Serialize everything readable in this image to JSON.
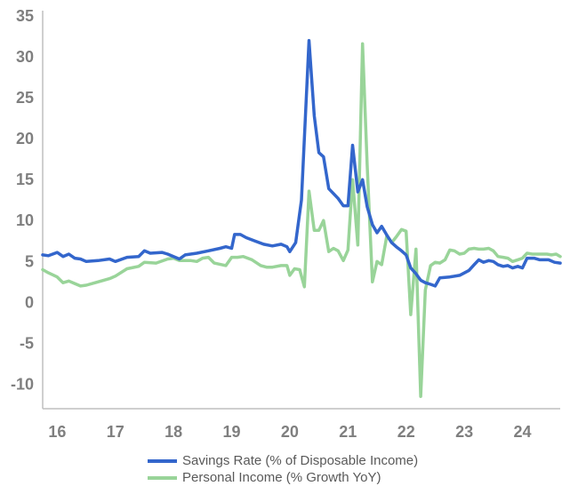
{
  "chart_data": {
    "type": "line",
    "x_ticks": [
      "16",
      "17",
      "18",
      "19",
      "20",
      "21",
      "22",
      "23",
      "24"
    ],
    "x_range": [
      2015.75,
      2024.65
    ],
    "ylim": [
      -13,
      35
    ],
    "y_ticks": [
      35,
      30,
      25,
      20,
      15,
      10,
      5,
      0,
      -5,
      -10
    ],
    "grid": false,
    "legend_position": "bottom",
    "series": [
      {
        "name": "Savings Rate (% of Disposable Income)",
        "color": "#3366cc",
        "points": [
          [
            2015.75,
            5.8
          ],
          [
            2015.85,
            5.7
          ],
          [
            2016.0,
            6.1
          ],
          [
            2016.1,
            5.6
          ],
          [
            2016.2,
            5.9
          ],
          [
            2016.3,
            5.4
          ],
          [
            2016.4,
            5.3
          ],
          [
            2016.5,
            5.0
          ],
          [
            2016.7,
            5.1
          ],
          [
            2016.9,
            5.3
          ],
          [
            2017.0,
            5.0
          ],
          [
            2017.2,
            5.5
          ],
          [
            2017.4,
            5.6
          ],
          [
            2017.5,
            6.3
          ],
          [
            2017.6,
            6.0
          ],
          [
            2017.8,
            6.1
          ],
          [
            2017.9,
            5.9
          ],
          [
            2018.0,
            5.6
          ],
          [
            2018.1,
            5.3
          ],
          [
            2018.2,
            5.8
          ],
          [
            2018.4,
            6.0
          ],
          [
            2018.6,
            6.3
          ],
          [
            2018.8,
            6.6
          ],
          [
            2018.9,
            6.8
          ],
          [
            2019.0,
            6.6
          ],
          [
            2019.05,
            8.3
          ],
          [
            2019.15,
            8.3
          ],
          [
            2019.25,
            7.9
          ],
          [
            2019.4,
            7.5
          ],
          [
            2019.55,
            7.1
          ],
          [
            2019.7,
            6.9
          ],
          [
            2019.85,
            7.1
          ],
          [
            2019.95,
            6.8
          ],
          [
            2020.0,
            6.2
          ],
          [
            2020.1,
            7.3
          ],
          [
            2020.2,
            12.5
          ],
          [
            2020.33,
            32.0
          ],
          [
            2020.42,
            22.8
          ],
          [
            2020.5,
            18.3
          ],
          [
            2020.58,
            17.8
          ],
          [
            2020.67,
            13.9
          ],
          [
            2020.83,
            12.7
          ],
          [
            2020.92,
            11.8
          ],
          [
            2021.0,
            11.8
          ],
          [
            2021.08,
            19.2
          ],
          [
            2021.17,
            13.5
          ],
          [
            2021.25,
            15.0
          ],
          [
            2021.33,
            11.7
          ],
          [
            2021.42,
            9.5
          ],
          [
            2021.5,
            8.5
          ],
          [
            2021.58,
            9.3
          ],
          [
            2021.67,
            8.2
          ],
          [
            2021.75,
            7.3
          ],
          [
            2021.83,
            6.8
          ],
          [
            2021.92,
            6.3
          ],
          [
            2022.0,
            5.8
          ],
          [
            2022.08,
            4.2
          ],
          [
            2022.17,
            3.5
          ],
          [
            2022.25,
            2.7
          ],
          [
            2022.33,
            2.4
          ],
          [
            2022.42,
            2.2
          ],
          [
            2022.5,
            2.0
          ],
          [
            2022.58,
            3.0
          ],
          [
            2022.75,
            3.1
          ],
          [
            2022.92,
            3.3
          ],
          [
            2023.08,
            3.9
          ],
          [
            2023.17,
            4.6
          ],
          [
            2023.25,
            5.2
          ],
          [
            2023.33,
            4.9
          ],
          [
            2023.42,
            5.1
          ],
          [
            2023.5,
            5.0
          ],
          [
            2023.58,
            4.6
          ],
          [
            2023.67,
            4.4
          ],
          [
            2023.75,
            4.5
          ],
          [
            2023.83,
            4.2
          ],
          [
            2023.92,
            4.4
          ],
          [
            2024.0,
            4.2
          ],
          [
            2024.08,
            5.4
          ],
          [
            2024.2,
            5.4
          ],
          [
            2024.3,
            5.2
          ],
          [
            2024.45,
            5.2
          ],
          [
            2024.55,
            4.9
          ],
          [
            2024.65,
            4.8
          ]
        ]
      },
      {
        "name": "Personal Income (% Growth YoY)",
        "color": "#99d499",
        "points": [
          [
            2015.75,
            4.0
          ],
          [
            2015.85,
            3.6
          ],
          [
            2016.0,
            3.1
          ],
          [
            2016.1,
            2.4
          ],
          [
            2016.2,
            2.6
          ],
          [
            2016.3,
            2.3
          ],
          [
            2016.4,
            2.0
          ],
          [
            2016.5,
            2.1
          ],
          [
            2016.7,
            2.5
          ],
          [
            2016.8,
            2.7
          ],
          [
            2016.9,
            2.9
          ],
          [
            2017.0,
            3.2
          ],
          [
            2017.2,
            4.1
          ],
          [
            2017.4,
            4.4
          ],
          [
            2017.5,
            4.9
          ],
          [
            2017.7,
            4.8
          ],
          [
            2017.9,
            5.3
          ],
          [
            2018.0,
            5.4
          ],
          [
            2018.1,
            5.1
          ],
          [
            2018.3,
            5.1
          ],
          [
            2018.4,
            5.0
          ],
          [
            2018.5,
            5.4
          ],
          [
            2018.6,
            5.5
          ],
          [
            2018.7,
            4.8
          ],
          [
            2018.9,
            4.5
          ],
          [
            2019.0,
            5.5
          ],
          [
            2019.1,
            5.5
          ],
          [
            2019.2,
            5.6
          ],
          [
            2019.35,
            5.2
          ],
          [
            2019.5,
            4.5
          ],
          [
            2019.6,
            4.3
          ],
          [
            2019.7,
            4.3
          ],
          [
            2019.85,
            4.5
          ],
          [
            2019.95,
            4.5
          ],
          [
            2020.0,
            3.3
          ],
          [
            2020.08,
            4.1
          ],
          [
            2020.17,
            4.0
          ],
          [
            2020.25,
            1.9
          ],
          [
            2020.33,
            13.6
          ],
          [
            2020.42,
            8.8
          ],
          [
            2020.5,
            8.8
          ],
          [
            2020.58,
            10.0
          ],
          [
            2020.67,
            6.2
          ],
          [
            2020.75,
            6.6
          ],
          [
            2020.83,
            6.3
          ],
          [
            2020.92,
            5.1
          ],
          [
            2021.0,
            6.4
          ],
          [
            2021.08,
            15.0
          ],
          [
            2021.17,
            7.0
          ],
          [
            2021.25,
            31.6
          ],
          [
            2021.33,
            16.8
          ],
          [
            2021.42,
            2.5
          ],
          [
            2021.5,
            5.0
          ],
          [
            2021.58,
            4.6
          ],
          [
            2021.67,
            8.2
          ],
          [
            2021.75,
            7.3
          ],
          [
            2021.83,
            8.0
          ],
          [
            2021.92,
            8.9
          ],
          [
            2022.0,
            8.7
          ],
          [
            2022.08,
            -1.5
          ],
          [
            2022.17,
            6.5
          ],
          [
            2022.25,
            -11.5
          ],
          [
            2022.33,
            1.5
          ],
          [
            2022.42,
            4.5
          ],
          [
            2022.5,
            4.9
          ],
          [
            2022.58,
            4.8
          ],
          [
            2022.67,
            5.2
          ],
          [
            2022.75,
            6.4
          ],
          [
            2022.83,
            6.3
          ],
          [
            2022.92,
            5.9
          ],
          [
            2023.0,
            6.0
          ],
          [
            2023.08,
            6.5
          ],
          [
            2023.17,
            6.6
          ],
          [
            2023.25,
            6.5
          ],
          [
            2023.33,
            6.5
          ],
          [
            2023.42,
            6.6
          ],
          [
            2023.5,
            6.3
          ],
          [
            2023.58,
            5.6
          ],
          [
            2023.67,
            5.5
          ],
          [
            2023.75,
            5.4
          ],
          [
            2023.83,
            5.0
          ],
          [
            2023.92,
            5.2
          ],
          [
            2024.0,
            5.4
          ],
          [
            2024.08,
            6.0
          ],
          [
            2024.17,
            5.9
          ],
          [
            2024.25,
            5.9
          ],
          [
            2024.33,
            5.9
          ],
          [
            2024.42,
            5.9
          ],
          [
            2024.5,
            5.8
          ],
          [
            2024.58,
            5.9
          ],
          [
            2024.65,
            5.6
          ]
        ]
      }
    ]
  }
}
